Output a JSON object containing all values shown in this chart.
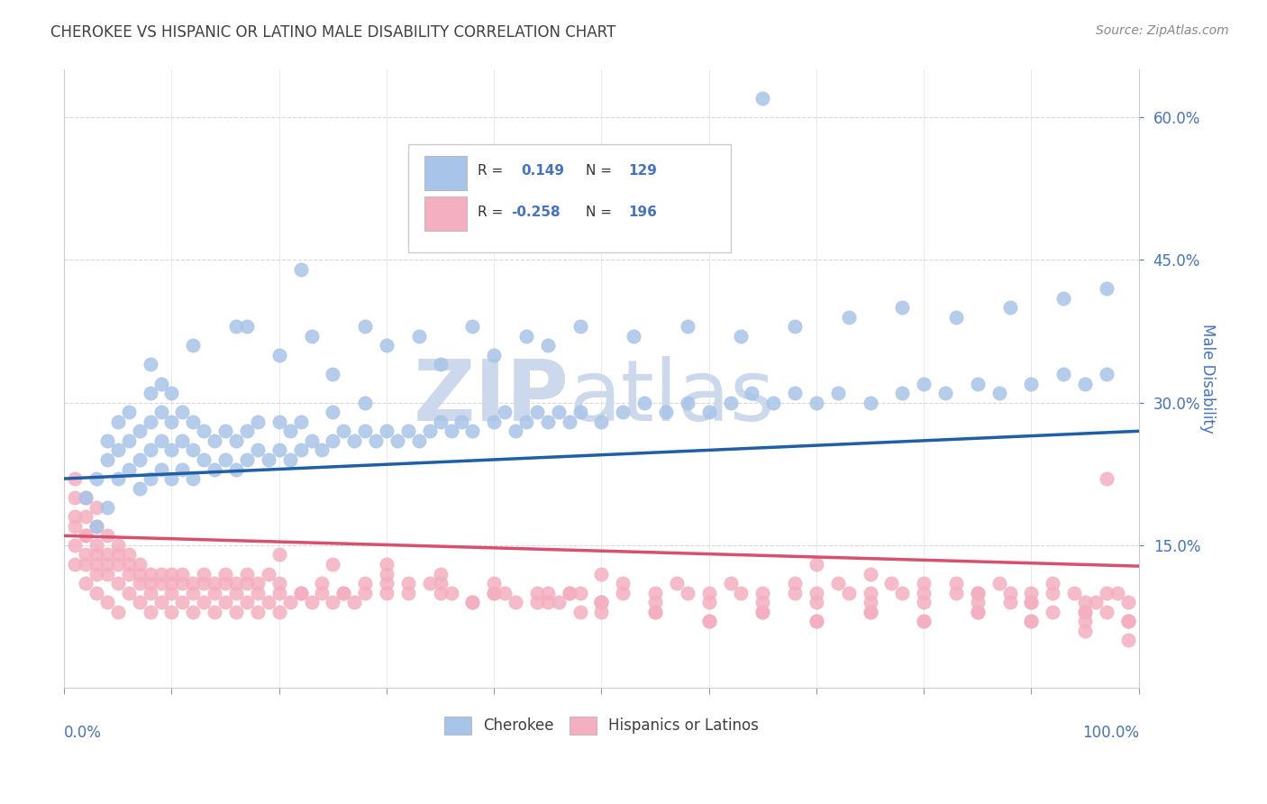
{
  "title": "CHEROKEE VS HISPANIC OR LATINO MALE DISABILITY CORRELATION CHART",
  "source": "Source: ZipAtlas.com",
  "ylabel": "Male Disability",
  "watermark_zip": "ZIP",
  "watermark_atlas": "atlas",
  "legend_blue_R": "0.149",
  "legend_blue_N": "129",
  "legend_pink_R": "-0.258",
  "legend_pink_N": "196",
  "yticks": [
    0.15,
    0.3,
    0.45,
    0.6
  ],
  "ytick_labels": [
    "15.0%",
    "30.0%",
    "45.0%",
    "60.0%"
  ],
  "blue_line_x": [
    0.0,
    1.0
  ],
  "blue_line_y": [
    0.22,
    0.27
  ],
  "pink_line_x": [
    0.0,
    1.0
  ],
  "pink_line_y": [
    0.16,
    0.128
  ],
  "blue_scatter_color": "#a8c4e8",
  "pink_scatter_color": "#f4afc0",
  "blue_line_color": "#1f5fa6",
  "pink_line_color": "#d94f6e",
  "text_color": "#4472c4",
  "title_color": "#404040",
  "source_color": "#888888",
  "background_color": "#ffffff",
  "grid_color": "#d8d8d8",
  "watermark_color": "#ccd8ec",
  "xlim": [
    0.0,
    1.0
  ],
  "ylim": [
    0.0,
    0.65
  ],
  "blue_scatter_x": [
    0.02,
    0.03,
    0.03,
    0.04,
    0.04,
    0.04,
    0.05,
    0.05,
    0.05,
    0.06,
    0.06,
    0.06,
    0.07,
    0.07,
    0.07,
    0.08,
    0.08,
    0.08,
    0.08,
    0.09,
    0.09,
    0.09,
    0.09,
    0.1,
    0.1,
    0.1,
    0.1,
    0.11,
    0.11,
    0.11,
    0.12,
    0.12,
    0.12,
    0.13,
    0.13,
    0.14,
    0.14,
    0.15,
    0.15,
    0.16,
    0.16,
    0.17,
    0.17,
    0.18,
    0.18,
    0.19,
    0.2,
    0.2,
    0.21,
    0.21,
    0.22,
    0.22,
    0.23,
    0.24,
    0.25,
    0.25,
    0.26,
    0.27,
    0.28,
    0.28,
    0.29,
    0.3,
    0.31,
    0.32,
    0.33,
    0.34,
    0.35,
    0.36,
    0.37,
    0.38,
    0.4,
    0.41,
    0.42,
    0.43,
    0.44,
    0.45,
    0.46,
    0.47,
    0.48,
    0.5,
    0.52,
    0.54,
    0.56,
    0.58,
    0.6,
    0.62,
    0.64,
    0.66,
    0.68,
    0.7,
    0.72,
    0.75,
    0.78,
    0.8,
    0.82,
    0.85,
    0.87,
    0.9,
    0.93,
    0.95,
    0.97,
    0.22,
    0.16,
    0.2,
    0.25,
    0.3,
    0.35,
    0.4,
    0.45,
    0.08,
    0.12,
    0.17,
    0.23,
    0.28,
    0.33,
    0.38,
    0.43,
    0.48,
    0.53,
    0.58,
    0.63,
    0.68,
    0.73,
    0.78,
    0.83,
    0.88,
    0.93,
    0.97,
    0.65
  ],
  "blue_scatter_y": [
    0.2,
    0.17,
    0.22,
    0.19,
    0.24,
    0.26,
    0.22,
    0.25,
    0.28,
    0.23,
    0.26,
    0.29,
    0.21,
    0.24,
    0.27,
    0.22,
    0.25,
    0.28,
    0.31,
    0.23,
    0.26,
    0.29,
    0.32,
    0.22,
    0.25,
    0.28,
    0.31,
    0.23,
    0.26,
    0.29,
    0.22,
    0.25,
    0.28,
    0.24,
    0.27,
    0.23,
    0.26,
    0.24,
    0.27,
    0.23,
    0.26,
    0.24,
    0.27,
    0.25,
    0.28,
    0.24,
    0.25,
    0.28,
    0.24,
    0.27,
    0.25,
    0.28,
    0.26,
    0.25,
    0.26,
    0.29,
    0.27,
    0.26,
    0.27,
    0.3,
    0.26,
    0.27,
    0.26,
    0.27,
    0.26,
    0.27,
    0.28,
    0.27,
    0.28,
    0.27,
    0.28,
    0.29,
    0.27,
    0.28,
    0.29,
    0.28,
    0.29,
    0.28,
    0.29,
    0.28,
    0.29,
    0.3,
    0.29,
    0.3,
    0.29,
    0.3,
    0.31,
    0.3,
    0.31,
    0.3,
    0.31,
    0.3,
    0.31,
    0.32,
    0.31,
    0.32,
    0.31,
    0.32,
    0.33,
    0.32,
    0.33,
    0.44,
    0.38,
    0.35,
    0.33,
    0.36,
    0.34,
    0.35,
    0.36,
    0.34,
    0.36,
    0.38,
    0.37,
    0.38,
    0.37,
    0.38,
    0.37,
    0.38,
    0.37,
    0.38,
    0.37,
    0.38,
    0.39,
    0.4,
    0.39,
    0.4,
    0.41,
    0.42,
    0.62
  ],
  "pink_scatter_x": [
    0.01,
    0.01,
    0.01,
    0.01,
    0.01,
    0.02,
    0.02,
    0.02,
    0.02,
    0.02,
    0.02,
    0.03,
    0.03,
    0.03,
    0.03,
    0.03,
    0.03,
    0.04,
    0.04,
    0.04,
    0.04,
    0.05,
    0.05,
    0.05,
    0.05,
    0.06,
    0.06,
    0.06,
    0.07,
    0.07,
    0.07,
    0.08,
    0.08,
    0.08,
    0.09,
    0.09,
    0.1,
    0.1,
    0.1,
    0.11,
    0.11,
    0.12,
    0.12,
    0.13,
    0.13,
    0.14,
    0.14,
    0.15,
    0.15,
    0.16,
    0.16,
    0.17,
    0.17,
    0.18,
    0.18,
    0.19,
    0.2,
    0.2,
    0.21,
    0.22,
    0.23,
    0.24,
    0.25,
    0.26,
    0.27,
    0.28,
    0.3,
    0.32,
    0.34,
    0.36,
    0.38,
    0.4,
    0.42,
    0.44,
    0.46,
    0.48,
    0.5,
    0.52,
    0.55,
    0.58,
    0.6,
    0.63,
    0.65,
    0.68,
    0.7,
    0.73,
    0.75,
    0.78,
    0.8,
    0.83,
    0.85,
    0.88,
    0.9,
    0.92,
    0.95,
    0.97,
    0.99,
    0.01,
    0.02,
    0.03,
    0.04,
    0.05,
    0.06,
    0.07,
    0.08,
    0.09,
    0.1,
    0.11,
    0.12,
    0.13,
    0.14,
    0.15,
    0.16,
    0.17,
    0.18,
    0.19,
    0.2,
    0.22,
    0.24,
    0.26,
    0.28,
    0.3,
    0.32,
    0.35,
    0.38,
    0.41,
    0.44,
    0.47,
    0.5,
    0.55,
    0.6,
    0.65,
    0.7,
    0.75,
    0.8,
    0.85,
    0.9,
    0.95,
    0.99,
    0.97,
    0.5,
    0.52,
    0.55,
    0.57,
    0.6,
    0.62,
    0.65,
    0.68,
    0.7,
    0.72,
    0.75,
    0.77,
    0.8,
    0.83,
    0.85,
    0.87,
    0.9,
    0.92,
    0.94,
    0.96,
    0.98,
    0.7,
    0.75,
    0.8,
    0.85,
    0.9,
    0.95,
    0.99,
    0.88,
    0.92,
    0.95,
    0.97,
    0.99,
    0.3,
    0.35,
    0.4,
    0.45,
    0.5,
    0.55,
    0.6,
    0.65,
    0.7,
    0.75,
    0.8,
    0.85,
    0.9,
    0.95,
    0.99,
    0.2,
    0.25,
    0.3,
    0.35,
    0.4,
    0.45,
    0.5,
    0.47,
    0.48
  ],
  "pink_scatter_y": [
    0.18,
    0.2,
    0.22,
    0.15,
    0.13,
    0.16,
    0.18,
    0.13,
    0.2,
    0.14,
    0.11,
    0.15,
    0.17,
    0.13,
    0.19,
    0.12,
    0.1,
    0.14,
    0.16,
    0.12,
    0.09,
    0.13,
    0.15,
    0.11,
    0.08,
    0.12,
    0.14,
    0.1,
    0.13,
    0.11,
    0.09,
    0.12,
    0.1,
    0.08,
    0.11,
    0.09,
    0.12,
    0.1,
    0.08,
    0.11,
    0.09,
    0.1,
    0.08,
    0.11,
    0.09,
    0.1,
    0.08,
    0.09,
    0.11,
    0.1,
    0.08,
    0.09,
    0.11,
    0.1,
    0.08,
    0.09,
    0.1,
    0.08,
    0.09,
    0.1,
    0.09,
    0.1,
    0.09,
    0.1,
    0.09,
    0.1,
    0.11,
    0.1,
    0.11,
    0.1,
    0.09,
    0.1,
    0.09,
    0.1,
    0.09,
    0.1,
    0.09,
    0.1,
    0.09,
    0.1,
    0.09,
    0.1,
    0.09,
    0.1,
    0.09,
    0.1,
    0.09,
    0.1,
    0.09,
    0.1,
    0.09,
    0.1,
    0.09,
    0.1,
    0.09,
    0.1,
    0.09,
    0.17,
    0.16,
    0.14,
    0.13,
    0.14,
    0.13,
    0.12,
    0.11,
    0.12,
    0.11,
    0.12,
    0.11,
    0.12,
    0.11,
    0.12,
    0.11,
    0.12,
    0.11,
    0.12,
    0.11,
    0.1,
    0.11,
    0.1,
    0.11,
    0.1,
    0.11,
    0.1,
    0.09,
    0.1,
    0.09,
    0.1,
    0.09,
    0.08,
    0.07,
    0.08,
    0.07,
    0.08,
    0.07,
    0.08,
    0.07,
    0.08,
    0.07,
    0.22,
    0.12,
    0.11,
    0.1,
    0.11,
    0.1,
    0.11,
    0.1,
    0.11,
    0.1,
    0.11,
    0.1,
    0.11,
    0.1,
    0.11,
    0.1,
    0.11,
    0.1,
    0.11,
    0.1,
    0.09,
    0.1,
    0.13,
    0.12,
    0.11,
    0.1,
    0.09,
    0.08,
    0.07,
    0.09,
    0.08,
    0.07,
    0.08,
    0.07,
    0.13,
    0.12,
    0.11,
    0.1,
    0.09,
    0.08,
    0.07,
    0.08,
    0.07,
    0.08,
    0.07,
    0.08,
    0.07,
    0.06,
    0.05,
    0.14,
    0.13,
    0.12,
    0.11,
    0.1,
    0.09,
    0.08,
    0.1,
    0.08
  ]
}
